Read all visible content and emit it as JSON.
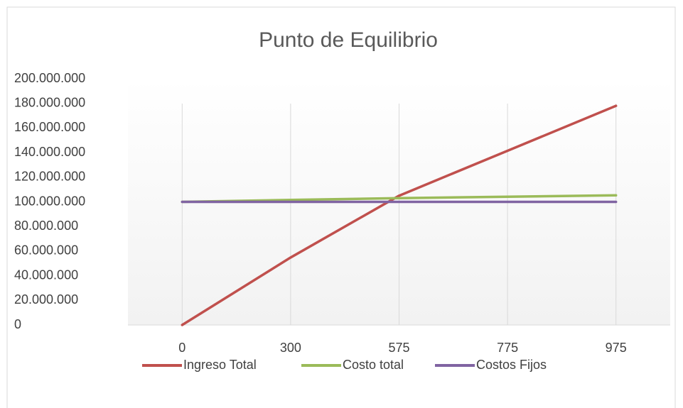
{
  "chart_data": {
    "type": "line",
    "title": "Punto de Equilibrio",
    "categories": [
      "0",
      "300",
      "575",
      "775",
      "975"
    ],
    "series": [
      {
        "name": "Ingreso Total",
        "color": "#c0504d",
        "values": [
          0,
          54800000,
          105000000,
          141500000,
          178000000
        ]
      },
      {
        "name": "Costo total",
        "color": "#9bbb59",
        "values": [
          100000000,
          101600000,
          103000000,
          104200000,
          105300000
        ]
      },
      {
        "name": "Costos Fijos",
        "color": "#8064a2",
        "values": [
          100000000,
          100000000,
          100000000,
          100000000,
          100000000
        ]
      }
    ],
    "ylim": [
      0,
      200000000
    ],
    "yticks": [
      0,
      {
        "value": 20000000,
        "label": "20.000.000"
      },
      {
        "value": 40000000,
        "label": "40.000.000"
      },
      {
        "value": 60000000,
        "label": "60.000.000"
      },
      {
        "value": 80000000,
        "label": "80.000.000"
      },
      {
        "value": 100000000,
        "label": "100.000.000"
      },
      {
        "value": 120000000,
        "label": "120.000.000"
      },
      {
        "value": 140000000,
        "label": "140.000.000"
      },
      {
        "value": 160000000,
        "label": "160.000.000"
      },
      {
        "value": 180000000,
        "label": "180.000.000"
      },
      {
        "value": 200000000,
        "label": "200.000.000"
      }
    ],
    "grid": true,
    "legend": "bottom"
  }
}
